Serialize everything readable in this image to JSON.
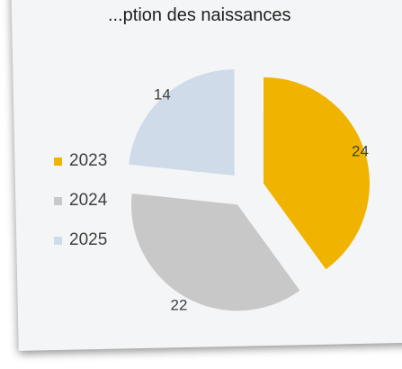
{
  "chart_data": {
    "type": "pie",
    "title": "...ption des naissances",
    "categories": [
      "2023",
      "2024",
      "2025"
    ],
    "values": [
      24,
      22,
      14
    ],
    "colors": [
      "#f0b400",
      "#c8c8c8",
      "#cfdbe8"
    ],
    "legend_position": "left",
    "exploded": true
  }
}
